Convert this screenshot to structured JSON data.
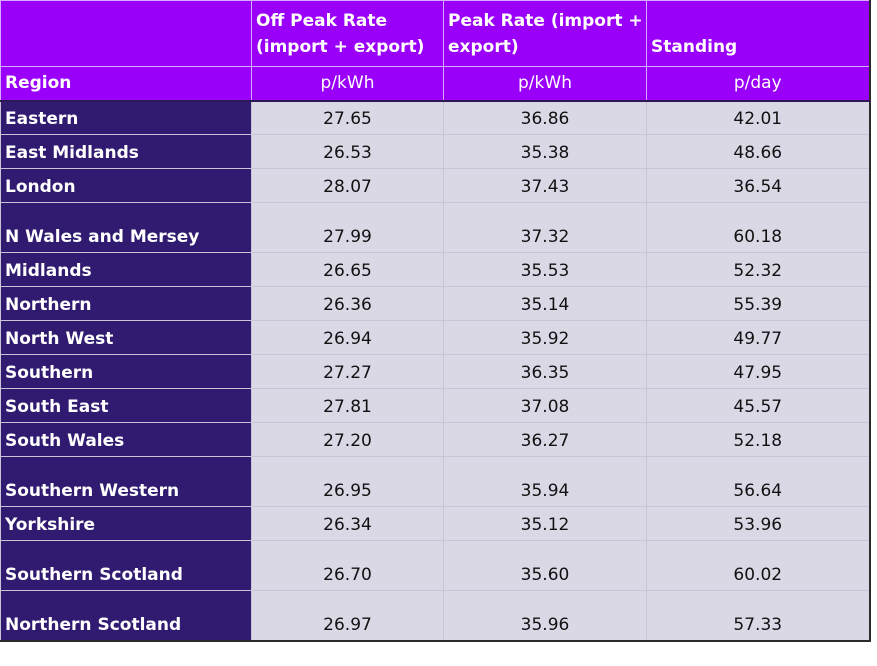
{
  "headers": {
    "offpeak": "Off Peak Rate (import + export)",
    "peak": "Peak Rate (import + export)",
    "standing": "Standing"
  },
  "units": {
    "region": "Region",
    "offpeak": "p/kWh",
    "peak": "p/kWh",
    "standing": "p/day"
  },
  "rows": [
    {
      "region": "Eastern",
      "offpeak": "27.65",
      "peak": "36.86",
      "standing": "42.01"
    },
    {
      "region": "East Midlands",
      "offpeak": "26.53",
      "peak": "35.38",
      "standing": "48.66"
    },
    {
      "region": "London",
      "offpeak": "28.07",
      "peak": "37.43",
      "standing": "36.54"
    },
    {
      "region": "N Wales and Mersey",
      "offpeak": "27.99",
      "peak": "37.32",
      "standing": "60.18"
    },
    {
      "region": "Midlands",
      "offpeak": "26.65",
      "peak": "35.53",
      "standing": "52.32"
    },
    {
      "region": "Northern",
      "offpeak": "26.36",
      "peak": "35.14",
      "standing": "55.39"
    },
    {
      "region": "North West",
      "offpeak": "26.94",
      "peak": "35.92",
      "standing": "49.77"
    },
    {
      "region": "Southern",
      "offpeak": "27.27",
      "peak": "36.35",
      "standing": "47.95"
    },
    {
      "region": "South East",
      "offpeak": "27.81",
      "peak": "37.08",
      "standing": "45.57"
    },
    {
      "region": "South Wales",
      "offpeak": "27.20",
      "peak": "36.27",
      "standing": "52.18"
    },
    {
      "region": "Southern Western",
      "offpeak": "26.95",
      "peak": "35.94",
      "standing": "56.64"
    },
    {
      "region": "Yorkshire",
      "offpeak": "26.34",
      "peak": "35.12",
      "standing": "53.96"
    },
    {
      "region": "Southern Scotland",
      "offpeak": "26.70",
      "peak": "35.60",
      "standing": "60.02"
    },
    {
      "region": "Northern Scotland",
      "offpeak": "26.97",
      "peak": "35.96",
      "standing": "57.33"
    }
  ],
  "colors": {
    "header_bg": "#9a00f9",
    "region_bg": "#311b70",
    "cell_bg": "#dbd8e6"
  }
}
